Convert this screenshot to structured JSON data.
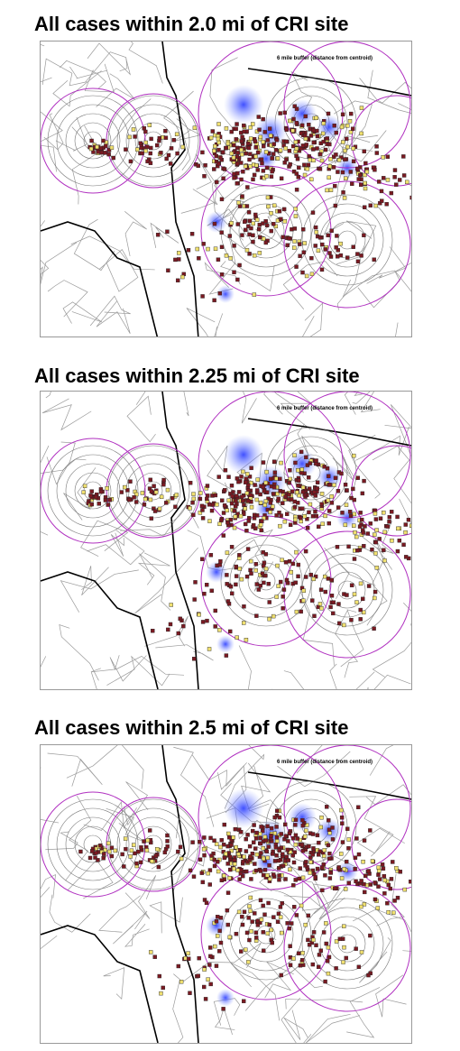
{
  "panels": [
    {
      "title": "All cases within 2.0 mi of CRI site",
      "map_note": "6 mile buffer (distance from centroid)"
    },
    {
      "title": "All cases within 2.25 mi of CRI site",
      "map_note": "6 mile buffer (distance from centroid)"
    },
    {
      "title": "All cases within 2.5 mi of CRI site",
      "map_note": "6 mile buffer (distance from centroid)"
    }
  ]
}
